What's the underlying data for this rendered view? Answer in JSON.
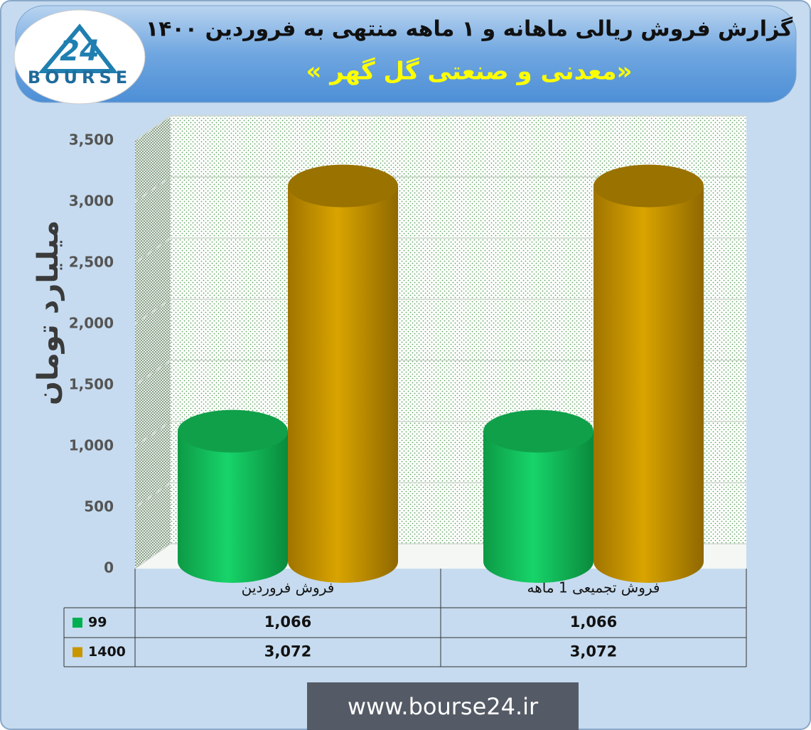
{
  "logo": {
    "mark": "24",
    "name": "BOURSE"
  },
  "chart_data": {
    "type": "cylinder-bar",
    "title": "گزارش فروش ریالی ماهانه و ۱ ماهه منتهی به فروردین ۱۴۰۰",
    "subtitle": "«معدنی و صنعتی گل گهر »",
    "y_label": "میلیارد تومان",
    "categories": [
      "فروش فروردین",
      "فروش تجمیعی 1 ماهه"
    ],
    "series": [
      {
        "name": "99",
        "color": "#00b050",
        "values": [
          1066,
          1066
        ],
        "value_labels": [
          "1,066",
          "1,066"
        ]
      },
      {
        "name": "1400",
        "color": "#c89600",
        "values": [
          3072,
          3072
        ],
        "value_labels": [
          "3,072",
          "3,072"
        ]
      }
    ],
    "ylim": [
      0,
      3500
    ],
    "yticks": [
      0,
      500,
      {
        "value": 1000,
        "label": "1,000"
      },
      {
        "value": 1500,
        "label": "1,500"
      },
      {
        "value": 2000,
        "label": "2,000"
      },
      {
        "value": 2500,
        "label": "2,500"
      },
      {
        "value": 3000,
        "label": "3,000"
      },
      {
        "value": 3500,
        "label": "3,500"
      }
    ],
    "grid": true
  },
  "footer": "www.bourse24.ir"
}
